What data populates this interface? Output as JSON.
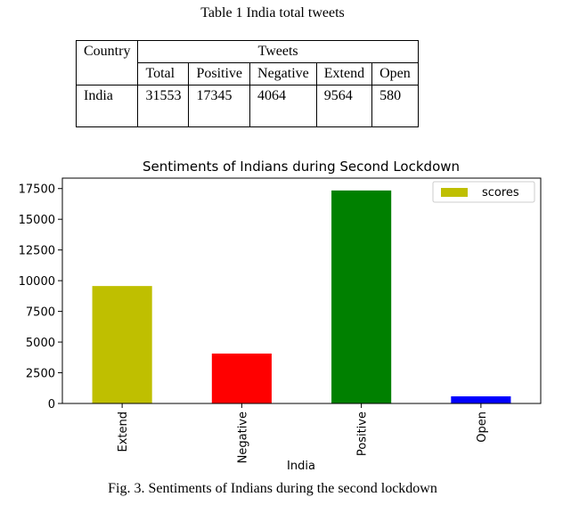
{
  "table": {
    "caption": "Table 1 India total tweets",
    "col_country": "Country",
    "col_tweets": "Tweets",
    "subheaders": [
      "Total",
      "Positive",
      "Negative",
      "Extend",
      "Open"
    ],
    "row": {
      "country": "India",
      "values": [
        "31553",
        "17345",
        "4064",
        "9564",
        "580"
      ]
    }
  },
  "chart_data": {
    "type": "bar",
    "title": "Sentiments of Indians during Second Lockdown",
    "xlabel": "India",
    "ylabel": "",
    "categories": [
      "Extend",
      "Negative",
      "Positive",
      "Open"
    ],
    "series": [
      {
        "name": "scores",
        "values": [
          9564,
          4064,
          17345,
          580
        ]
      }
    ],
    "bar_colors": [
      "#bfbf00",
      "#ff0000",
      "#008000",
      "#0000ff"
    ],
    "legend_color": "#bfbf00",
    "ylim": [
      0,
      18350
    ],
    "yticks": [
      0,
      2500,
      5000,
      7500,
      10000,
      12500,
      15000,
      17500
    ],
    "ytick_labels": [
      "0",
      "2500",
      "5000",
      "7500",
      "10000",
      "12500",
      "15000",
      "17500"
    ],
    "legend_position": "top-right",
    "grid": false
  },
  "figure": {
    "caption": "Fig. 3. Sentiments of Indians during the second lockdown"
  }
}
